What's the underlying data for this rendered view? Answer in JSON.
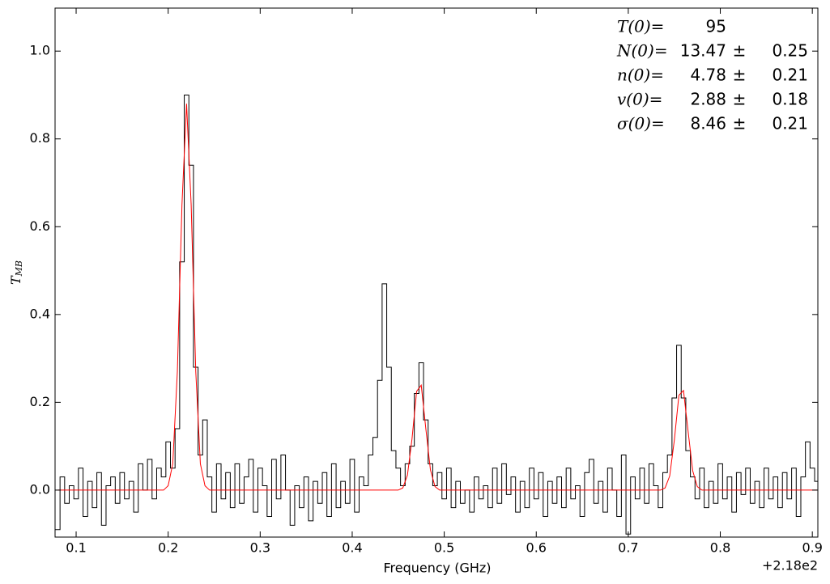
{
  "chart_data": {
    "type": "line",
    "xlabel": "Frequency (GHz)",
    "ylabel": {
      "text": "T",
      "subscript": "MB"
    },
    "x_offset_label": "+2.18e2",
    "xlim": [
      0.0771,
      0.906
    ],
    "ylim": [
      -0.107,
      1.098
    ],
    "xticks": [
      0.1,
      0.2,
      0.3,
      0.4,
      0.5,
      0.6,
      0.7,
      0.8,
      0.9
    ],
    "yticks": [
      {
        "value": 0,
        "label": "0.0"
      },
      0.2,
      0.4,
      0.6,
      0.8,
      {
        "value": 1,
        "label": "1.0"
      }
    ],
    "annotations": {
      "separator": "±",
      "rows": [
        {
          "name": "T(0)=",
          "value": 95
        },
        {
          "name": "N(0)=",
          "value": 13.47,
          "error": 0.25
        },
        {
          "name": "n(0)=",
          "value": 4.78,
          "error": 0.21
        },
        {
          "name": "v(0)=",
          "value": 2.88,
          "error": 0.18
        },
        {
          "name": "σ(0)=",
          "value": 8.46,
          "error": 0.21
        }
      ]
    },
    "series": [
      {
        "color": "#000000",
        "step": true,
        "x": [
          0.08,
          0.085,
          0.09,
          0.095,
          0.1,
          0.105,
          0.11,
          0.115,
          0.12,
          0.125,
          0.13,
          0.135,
          0.14,
          0.145,
          0.15,
          0.155,
          0.16,
          0.165,
          0.17,
          0.175,
          0.18,
          0.185,
          0.19,
          0.195,
          0.2,
          0.205,
          0.21,
          0.215,
          0.22,
          0.225,
          0.23,
          0.235,
          0.24,
          0.245,
          0.25,
          0.255,
          0.26,
          0.265,
          0.27,
          0.275,
          0.28,
          0.285,
          0.29,
          0.295,
          0.3,
          0.305,
          0.31,
          0.315,
          0.32,
          0.325,
          0.33,
          0.335,
          0.34,
          0.345,
          0.35,
          0.355,
          0.36,
          0.365,
          0.37,
          0.375,
          0.38,
          0.385,
          0.39,
          0.395,
          0.4,
          0.405,
          0.41,
          0.415,
          0.42,
          0.425,
          0.43,
          0.435,
          0.44,
          0.445,
          0.45,
          0.455,
          0.46,
          0.465,
          0.47,
          0.475,
          0.48,
          0.485,
          0.49,
          0.495,
          0.5,
          0.505,
          0.51,
          0.515,
          0.52,
          0.525,
          0.53,
          0.535,
          0.54,
          0.545,
          0.55,
          0.555,
          0.56,
          0.565,
          0.57,
          0.575,
          0.58,
          0.585,
          0.59,
          0.595,
          0.6,
          0.605,
          0.61,
          0.615,
          0.62,
          0.625,
          0.63,
          0.635,
          0.64,
          0.645,
          0.65,
          0.655,
          0.66,
          0.665,
          0.67,
          0.675,
          0.68,
          0.685,
          0.69,
          0.695,
          0.7,
          0.705,
          0.71,
          0.715,
          0.72,
          0.725,
          0.73,
          0.735,
          0.74,
          0.745,
          0.75,
          0.755,
          0.76,
          0.765,
          0.77,
          0.775,
          0.78,
          0.785,
          0.79,
          0.795,
          0.8,
          0.805,
          0.81,
          0.815,
          0.82,
          0.825,
          0.83,
          0.835,
          0.84,
          0.845,
          0.85,
          0.855,
          0.86,
          0.865,
          0.87,
          0.875,
          0.88,
          0.885,
          0.89,
          0.895,
          0.9,
          0.905
        ],
        "values": [
          -0.09,
          0.03,
          -0.03,
          0.01,
          -0.02,
          0.05,
          -0.06,
          0.02,
          -0.04,
          0.04,
          -0.08,
          0.01,
          0.03,
          -0.03,
          0.04,
          -0.02,
          0.02,
          -0.05,
          0.06,
          0.0,
          0.07,
          -0.02,
          0.05,
          0.03,
          0.11,
          0.05,
          0.14,
          0.52,
          0.9,
          0.74,
          0.28,
          0.08,
          0.16,
          0.03,
          -0.05,
          0.06,
          -0.02,
          0.04,
          -0.04,
          0.06,
          -0.03,
          0.03,
          0.07,
          -0.05,
          0.05,
          0.01,
          -0.06,
          0.07,
          -0.02,
          0.08,
          0.0,
          -0.08,
          0.01,
          -0.04,
          0.03,
          -0.07,
          0.02,
          -0.03,
          0.04,
          -0.06,
          0.06,
          -0.04,
          0.02,
          -0.03,
          0.07,
          -0.05,
          0.03,
          0.01,
          0.08,
          0.12,
          0.25,
          0.47,
          0.28,
          0.09,
          0.05,
          0.01,
          0.06,
          0.1,
          0.22,
          0.29,
          0.16,
          0.06,
          0.01,
          0.04,
          -0.02,
          0.05,
          -0.04,
          0.02,
          -0.03,
          0.0,
          -0.05,
          0.03,
          -0.02,
          0.01,
          -0.04,
          0.05,
          -0.03,
          0.06,
          -0.01,
          0.03,
          -0.05,
          0.02,
          -0.04,
          0.05,
          -0.02,
          0.04,
          -0.06,
          0.02,
          -0.03,
          0.03,
          -0.04,
          0.05,
          -0.02,
          0.01,
          -0.06,
          0.04,
          0.07,
          -0.03,
          0.02,
          -0.05,
          0.05,
          0.0,
          -0.06,
          0.08,
          -0.1,
          0.03,
          -0.02,
          0.05,
          -0.03,
          0.06,
          0.01,
          -0.04,
          0.04,
          0.08,
          0.21,
          0.33,
          0.21,
          0.09,
          0.03,
          -0.02,
          0.05,
          -0.04,
          0.02,
          -0.03,
          0.06,
          -0.02,
          0.03,
          -0.05,
          0.04,
          -0.01,
          0.05,
          -0.03,
          0.02,
          -0.04,
          0.05,
          -0.02,
          0.03,
          -0.04,
          0.04,
          -0.02,
          0.05,
          -0.06,
          0.03,
          0.11,
          0.05,
          0.02
        ]
      },
      {
        "color": "#ff0000",
        "step": false,
        "x": [
          0.08,
          0.195,
          0.2,
          0.205,
          0.21,
          0.215,
          0.22,
          0.225,
          0.23,
          0.235,
          0.24,
          0.245,
          0.45,
          0.455,
          0.46,
          0.465,
          0.47,
          0.475,
          0.48,
          0.485,
          0.49,
          0.495,
          0.735,
          0.74,
          0.745,
          0.75,
          0.755,
          0.76,
          0.765,
          0.77,
          0.775,
          0.78,
          0.905
        ],
        "values": [
          0,
          0,
          0.01,
          0.06,
          0.27,
          0.65,
          0.88,
          0.65,
          0.27,
          0.06,
          0.01,
          0,
          0,
          0.005,
          0.034,
          0.117,
          0.225,
          0.239,
          0.14,
          0.046,
          0.008,
          0,
          0,
          0.005,
          0.032,
          0.113,
          0.216,
          0.227,
          0.134,
          0.044,
          0.008,
          0,
          0
        ]
      }
    ]
  }
}
